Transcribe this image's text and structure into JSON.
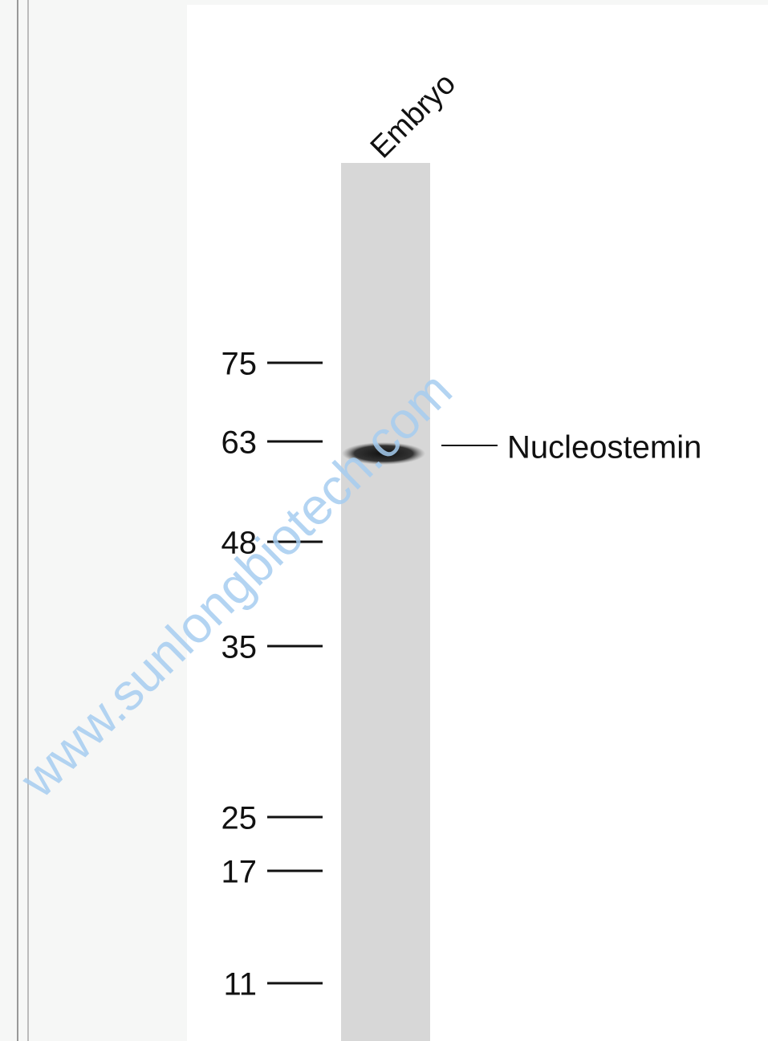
{
  "lane_label": "Embryo",
  "markers": [
    "75",
    "63",
    "48",
    "35",
    "25",
    "17",
    "11"
  ],
  "band_label": "Nucleostemin",
  "watermark": "www.sunlongbiotech.com"
}
